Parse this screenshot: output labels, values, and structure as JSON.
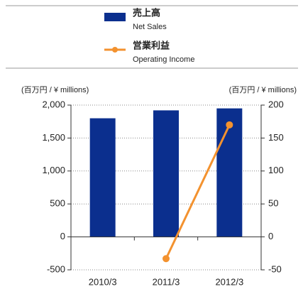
{
  "chart_data": {
    "type": "bar_line",
    "ylabel": "(百万円 / ¥ millions)",
    "y2label": "(百万円 / ¥ millions)",
    "categories": [
      "2010/3",
      "2011/3",
      "2012/3"
    ],
    "series": [
      {
        "name": "売上高",
        "name_en": "Net Sales",
        "type": "bar",
        "color": "#0b2f8e",
        "values": [
          1800,
          1920,
          1950
        ]
      },
      {
        "name": "営業利益",
        "name_en": "Operating Income",
        "type": "line",
        "axis": "y2",
        "color": "#f3922f",
        "values": [
          null,
          -33,
          170
        ]
      }
    ],
    "ylim": [
      -500,
      2000
    ],
    "yticks": [
      -500,
      0,
      500,
      {
        "value": 1000,
        "label": "1,000"
      },
      {
        "value": 1500,
        "label": "1,500"
      },
      {
        "value": 2000,
        "label": "2,000"
      }
    ],
    "y2lim": [
      -50,
      200
    ],
    "y2ticks": [
      -50,
      0,
      50,
      100,
      150,
      200
    ],
    "grid": true
  }
}
